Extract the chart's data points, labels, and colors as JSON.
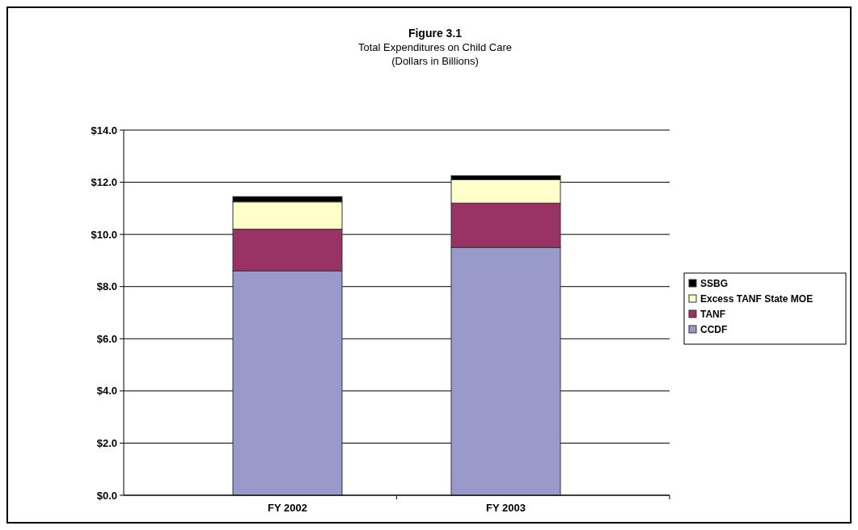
{
  "chart_data": {
    "type": "bar",
    "title": "Figure 3.1",
    "subtitle": "Total Expenditures on Child Care\n(Dollars in Billions)",
    "categories": [
      "FY 2002",
      "FY 2003"
    ],
    "stacked": true,
    "series": [
      {
        "name": "CCDF",
        "color": "#9999cc",
        "values": [
          8.6,
          9.5
        ]
      },
      {
        "name": "TANF",
        "color": "#993366",
        "values": [
          1.6,
          1.7
        ]
      },
      {
        "name": "Excess TANF State MOE",
        "color": "#ffffcc",
        "values": [
          1.05,
          0.9
        ]
      },
      {
        "name": "SSBG",
        "color": "#000000",
        "values": [
          0.2,
          0.15
        ]
      }
    ],
    "ylim": [
      0,
      14
    ],
    "yticks": [
      {
        "value": 0,
        "label": "$0.0"
      },
      {
        "value": 2,
        "label": "$2.0"
      },
      {
        "value": 4,
        "label": "$4.0"
      },
      {
        "value": 6,
        "label": "$6.0"
      },
      {
        "value": 8,
        "label": "$8.0"
      },
      {
        "value": 10,
        "label": "$10.0"
      },
      {
        "value": 12,
        "label": "$12.0"
      },
      {
        "value": 14,
        "label": "$14.0"
      }
    ],
    "grid": "y",
    "legend": "right"
  }
}
